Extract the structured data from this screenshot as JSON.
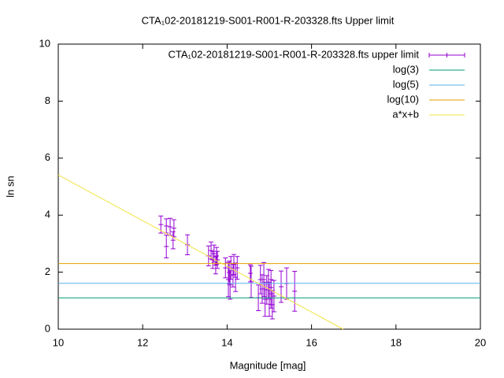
{
  "chart_data": {
    "type": "scatter",
    "title": "CTA₁02-20181219-S001-R001-R-203328.fts Upper limit",
    "x_label": "Magnitude [mag]",
    "y_label": "ln sn",
    "xlim": [
      10,
      20
    ],
    "xticks": [
      10,
      12,
      14,
      16,
      18,
      20
    ],
    "ylim": [
      0,
      10
    ],
    "yticks": [
      0,
      2,
      4,
      6,
      8,
      10
    ],
    "legend": "top-right",
    "series": [
      {
        "name": "CTA₁02-20181219-S001-R001-R-203328.fts upper limit",
        "type": "errorbar",
        "color": "#9400d3",
        "x": [
          12.43,
          12.56,
          12.56,
          12.65,
          12.72,
          12.74,
          13.06,
          13.56,
          13.62,
          13.66,
          13.69,
          13.73,
          13.75,
          13.77,
          13.96,
          14.03,
          14.05,
          14.07,
          14.09,
          14.14,
          14.16,
          14.2,
          14.24,
          14.55,
          14.57,
          14.74,
          14.79,
          14.83,
          14.87,
          14.9,
          14.94,
          14.98,
          15.0,
          15.04,
          15.04,
          15.07,
          15.11,
          15.28,
          15.41,
          15.6
        ],
        "values": [
          3.67,
          3.62,
          2.9,
          3.59,
          3.12,
          3.54,
          2.96,
          2.57,
          2.76,
          2.43,
          2.65,
          2.24,
          2.57,
          2.43,
          2.15,
          1.74,
          1.99,
          1.55,
          2.15,
          1.88,
          2.27,
          1.82,
          2.15,
          1.96,
          1.66,
          1.1,
          1.74,
          1.41,
          1.74,
          1.05,
          1.38,
          1.6,
          1.05,
          1.24,
          1.46,
          0.86,
          1.16,
          1.49,
          1.6,
          1.33
        ],
        "errors": [
          0.3,
          0.25,
          0.4,
          0.3,
          0.3,
          0.3,
          0.35,
          0.35,
          0.3,
          0.3,
          0.3,
          0.3,
          0.3,
          0.3,
          0.35,
          0.6,
          0.4,
          0.5,
          0.4,
          0.4,
          0.35,
          0.5,
          0.4,
          0.3,
          0.55,
          0.45,
          0.5,
          0.5,
          0.6,
          0.6,
          0.5,
          0.5,
          0.6,
          0.5,
          0.6,
          0.5,
          0.55,
          0.55,
          0.55,
          0.7
        ]
      },
      {
        "name": "log(3)",
        "type": "hline",
        "color": "#009e73",
        "value": 1.0986
      },
      {
        "name": "log(5)",
        "type": "hline",
        "color": "#56b4e9",
        "value": 1.6094
      },
      {
        "name": "log(10)",
        "type": "hline",
        "color": "#e69f00",
        "value": 2.3026
      },
      {
        "name": "a*x+b",
        "type": "line",
        "color": "#f0e442",
        "x": [
          10,
          16.75
        ],
        "values": [
          5.41,
          0
        ]
      }
    ]
  }
}
